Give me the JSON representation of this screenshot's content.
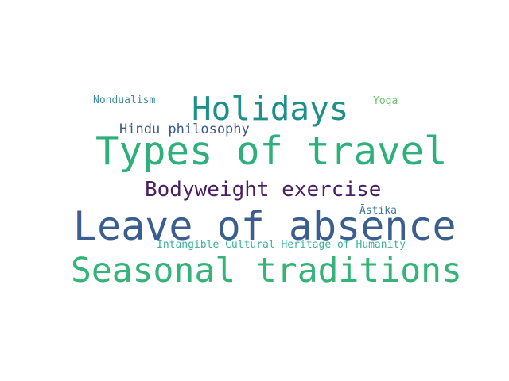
{
  "cloud": {
    "words": {
      "nondualism": {
        "text": "Nondualism",
        "color": "#3e8e9a"
      },
      "holidays": {
        "text": "Holidays",
        "color": "#1f8f8a"
      },
      "yoga": {
        "text": "Yoga",
        "color": "#6cc36b"
      },
      "hindu": {
        "text": "Hindu philosophy",
        "color": "#3a5a8c"
      },
      "travel": {
        "text": "Types of travel",
        "color": "#2eb07c"
      },
      "bodyweight": {
        "text": "Bodyweight exercise",
        "color": "#4a1f63"
      },
      "astika": {
        "text": "Āstika",
        "color": "#3d7a96"
      },
      "leave": {
        "text": "Leave of absence",
        "color": "#3b5e8f"
      },
      "intangible": {
        "text": "Intangible Cultural Heritage of Humanity",
        "color": "#37b39a"
      },
      "seasonal": {
        "text": "Seasonal traditions",
        "color": "#35b379"
      }
    }
  }
}
